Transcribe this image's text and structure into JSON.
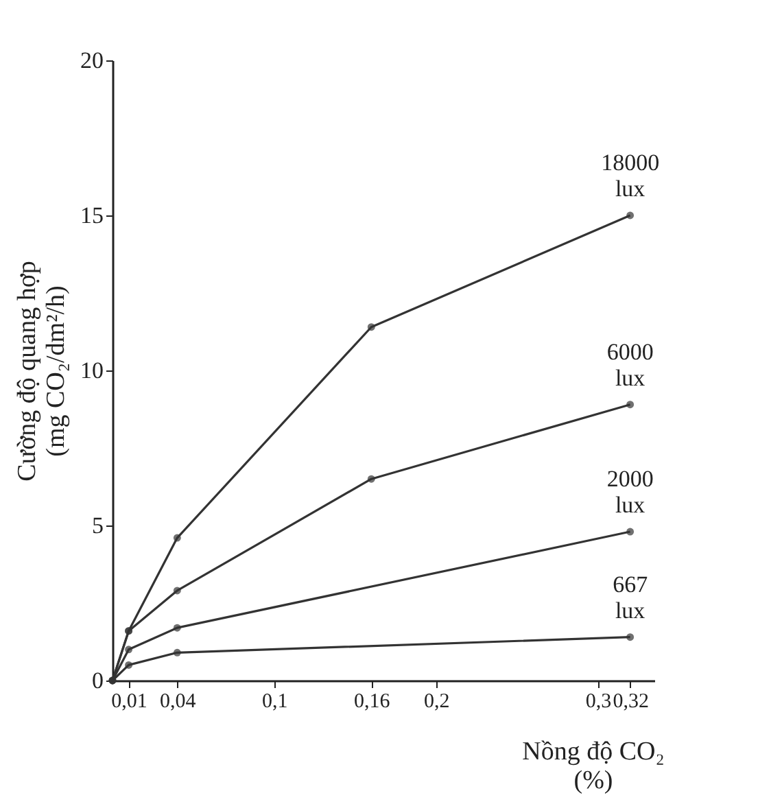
{
  "chart_data": {
    "type": "line",
    "xlabel": "Nồng độ CO₂\n(%)",
    "ylabel": "Cường độ quang hợp\n(mg CO₂/dm²/h)",
    "xlim": [
      0,
      0.335
    ],
    "xticks": [
      {
        "value": 0.01,
        "label": "0,01"
      },
      {
        "value": 0.04,
        "label": "0,04"
      },
      {
        "value": 0.1,
        "label": "0,1"
      },
      {
        "value": 0.16,
        "label": "0,16"
      },
      {
        "value": 0.2,
        "label": "0,2"
      },
      {
        "value": 0.3,
        "label": "0,3"
      },
      {
        "value": 0.32,
        "label": "0,32"
      }
    ],
    "ylim": [
      0,
      20
    ],
    "yticks": [
      0,
      5,
      10,
      15,
      20
    ],
    "grid": false,
    "legend": false,
    "marker": "circle",
    "line_style": "solid",
    "x": [
      0,
      0.01,
      0.04,
      0.16,
      0.32
    ],
    "series": [
      {
        "name": "18000 lux",
        "color": "#333333",
        "values": [
          0,
          1.6,
          4.6,
          11.4,
          15.0
        ]
      },
      {
        "name": "6000 lux",
        "color": "#333333",
        "values": [
          0,
          1.6,
          2.9,
          6.5,
          8.9
        ]
      },
      {
        "name": "2000 lux",
        "color": "#333333",
        "x": [
          0,
          0.01,
          0.04,
          0.32
        ],
        "values": [
          0,
          1.0,
          1.7,
          4.8
        ]
      },
      {
        "name": "667 lux",
        "color": "#333333",
        "x": [
          0,
          0.01,
          0.04,
          0.32
        ],
        "values": [
          0,
          0.5,
          0.9,
          1.4
        ]
      }
    ]
  }
}
